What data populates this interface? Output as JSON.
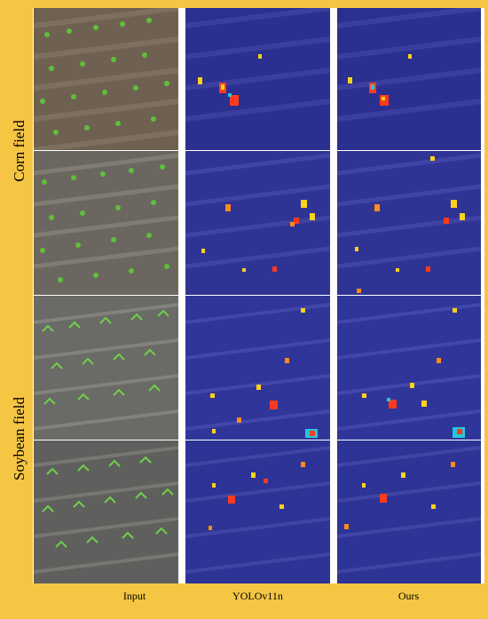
{
  "row_labels": {
    "corn": "Corn field",
    "soybean": "Soybean field"
  },
  "column_labels": {
    "input": "Input",
    "yolo": "YOLOv11n",
    "ours": "Ours"
  },
  "colors": {
    "frame": "#f5c644",
    "heatmap_base": "#2b2f8f",
    "plant_green": "#5fbf3a",
    "hot": "#ff3b1e",
    "warm": "#ffd21a",
    "cool": "#26c6da"
  }
}
